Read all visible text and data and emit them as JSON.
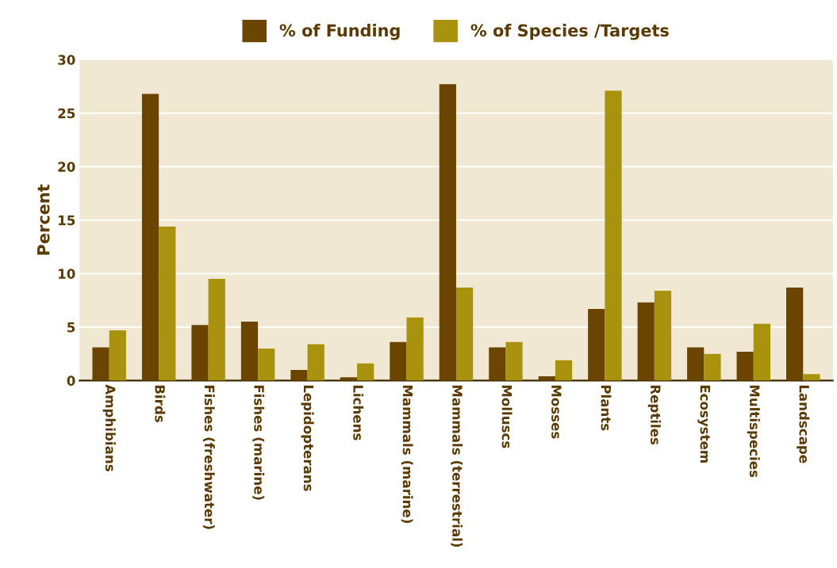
{
  "chart_data": {
    "type": "bar",
    "ylabel": "Percent",
    "categories": [
      "Amphibians",
      "Birds",
      "Fishes (freshwater)",
      "Fishes (marine)",
      "Lepidopterans",
      "Lichens",
      "Mammals (marine)",
      "Mammals (terrestrial)",
      "Molluscs",
      "Mosses",
      "Plants",
      "Reptiles",
      "Ecosystem",
      "Multispecies",
      "Landscape"
    ],
    "series": [
      {
        "name": "% of Funding",
        "color": "#6b4500",
        "values": [
          3.1,
          26.8,
          5.2,
          5.5,
          1.0,
          0.3,
          3.6,
          27.7,
          3.1,
          0.4,
          6.7,
          7.3,
          3.1,
          2.7,
          8.7
        ]
      },
      {
        "name": "% of Species /Targets",
        "color": "#a8920e",
        "values": [
          4.7,
          14.4,
          9.5,
          3.0,
          3.4,
          1.6,
          5.9,
          8.7,
          3.6,
          1.9,
          27.1,
          8.4,
          2.5,
          5.3,
          0.6
        ]
      }
    ],
    "ylim": [
      0,
      30
    ],
    "yticks": [
      0,
      5,
      10,
      15,
      20,
      25,
      30
    ],
    "grid": "y",
    "legend": "top"
  }
}
